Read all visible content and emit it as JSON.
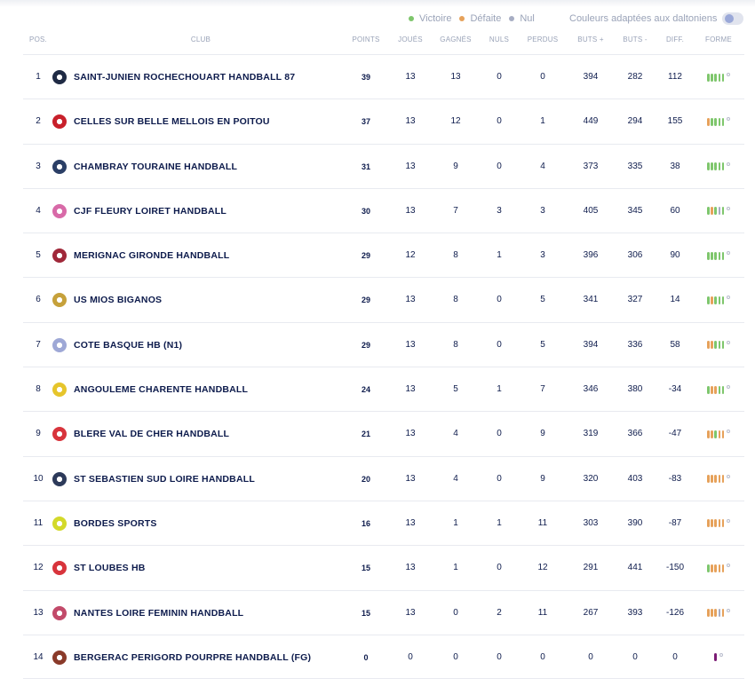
{
  "legend": {
    "victoire": "Victoire",
    "defaite": "Défaite",
    "nul": "Nul",
    "colors": {
      "victoire": "#7ec66c",
      "defaite": "#e6a15a",
      "nul": "#a7adc3"
    },
    "daltonien_label": "Couleurs adaptées aux daltoniens"
  },
  "headers": {
    "pos": "POS.",
    "club": "CLUB",
    "points": "POINTS",
    "joues": "JOUÉS",
    "gagnes": "GAGNÉS",
    "nuls": "NULS",
    "perdus": "PERDUS",
    "buts_plus": "BUTS +",
    "buts_moins": "BUTS -",
    "diff": "DIFF.",
    "forme": "FORME"
  },
  "rows": [
    {
      "pos": "1",
      "club": "SAINT-JUNIEN ROCHECHOUART HANDBALL 87",
      "points": "39",
      "joues": "13",
      "gagnes": "13",
      "nuls": "0",
      "perdus": "0",
      "buts_plus": "394",
      "buts_moins": "282",
      "diff": "112",
      "forme": "VVVVV",
      "logo": "#1f2a44"
    },
    {
      "pos": "2",
      "club": "CELLES SUR BELLE MELLOIS EN POITOU",
      "points": "37",
      "joues": "13",
      "gagnes": "12",
      "nuls": "0",
      "perdus": "1",
      "buts_plus": "449",
      "buts_moins": "294",
      "diff": "155",
      "forme": "DVVVV",
      "logo": "#c8202b"
    },
    {
      "pos": "3",
      "club": "CHAMBRAY TOURAINE HANDBALL",
      "points": "31",
      "joues": "13",
      "gagnes": "9",
      "nuls": "0",
      "perdus": "4",
      "buts_plus": "373",
      "buts_moins": "335",
      "diff": "38",
      "forme": "VVVVV",
      "logo": "#2b3f66"
    },
    {
      "pos": "4",
      "club": "CJF FLEURY LOIRET HANDBALL",
      "points": "30",
      "joues": "13",
      "gagnes": "7",
      "nuls": "3",
      "perdus": "3",
      "buts_plus": "405",
      "buts_moins": "345",
      "diff": "60",
      "forme": "VDVNV",
      "logo": "#d86aa8"
    },
    {
      "pos": "5",
      "club": "MERIGNAC GIRONDE HANDBALL",
      "points": "29",
      "joues": "12",
      "gagnes": "8",
      "nuls": "1",
      "perdus": "3",
      "buts_plus": "396",
      "buts_moins": "306",
      "diff": "90",
      "forme": "VVVVV",
      "logo": "#a0283a"
    },
    {
      "pos": "6",
      "club": "US MIOS BIGANOS",
      "points": "29",
      "joues": "13",
      "gagnes": "8",
      "nuls": "0",
      "perdus": "5",
      "buts_plus": "341",
      "buts_moins": "327",
      "diff": "14",
      "forme": "VDVVV",
      "logo": "#c6a13b"
    },
    {
      "pos": "7",
      "club": "COTE BASQUE HB (N1)",
      "points": "29",
      "joues": "13",
      "gagnes": "8",
      "nuls": "0",
      "perdus": "5",
      "buts_plus": "394",
      "buts_moins": "336",
      "diff": "58",
      "forme": "DDVVV",
      "logo": "#9ea8d6"
    },
    {
      "pos": "8",
      "club": "ANGOULEME CHARENTE HANDBALL",
      "points": "24",
      "joues": "13",
      "gagnes": "5",
      "nuls": "1",
      "perdus": "7",
      "buts_plus": "346",
      "buts_moins": "380",
      "diff": "-34",
      "forme": "VDDVV",
      "logo": "#e6c52c"
    },
    {
      "pos": "9",
      "club": "BLERE VAL DE CHER HANDBALL",
      "points": "21",
      "joues": "13",
      "gagnes": "4",
      "nuls": "0",
      "perdus": "9",
      "buts_plus": "319",
      "buts_moins": "366",
      "diff": "-47",
      "forme": "DDVDD",
      "logo": "#d8343c"
    },
    {
      "pos": "10",
      "club": "ST SEBASTIEN SUD LOIRE HANDBALL",
      "points": "20",
      "joues": "13",
      "gagnes": "4",
      "nuls": "0",
      "perdus": "9",
      "buts_plus": "320",
      "buts_moins": "403",
      "diff": "-83",
      "forme": "DDDDD",
      "logo": "#2d3a5a"
    },
    {
      "pos": "11",
      "club": "BORDES SPORTS",
      "points": "16",
      "joues": "13",
      "gagnes": "1",
      "nuls": "1",
      "perdus": "11",
      "buts_plus": "303",
      "buts_moins": "390",
      "diff": "-87",
      "forme": "DDDDD",
      "logo": "#d3d92a"
    },
    {
      "pos": "12",
      "club": "ST LOUBES HB",
      "points": "15",
      "joues": "13",
      "gagnes": "1",
      "nuls": "0",
      "perdus": "12",
      "buts_plus": "291",
      "buts_moins": "441",
      "diff": "-150",
      "forme": "VDDDD",
      "logo": "#d8343c"
    },
    {
      "pos": "13",
      "club": "NANTES LOIRE FEMININ HANDBALL",
      "points": "15",
      "joues": "13",
      "gagnes": "0",
      "nuls": "2",
      "perdus": "11",
      "buts_plus": "267",
      "buts_moins": "393",
      "diff": "-126",
      "forme": "DDDND",
      "logo": "#c24a6a"
    },
    {
      "pos": "14",
      "club": "BERGERAC PERIGORD POURPRE HANDBALL (FG)",
      "points": "0",
      "joues": "0",
      "gagnes": "0",
      "nuls": "0",
      "perdus": "0",
      "buts_plus": "0",
      "buts_moins": "0",
      "diff": "0",
      "forme": "X",
      "logo": "#8a3a2a"
    }
  ]
}
